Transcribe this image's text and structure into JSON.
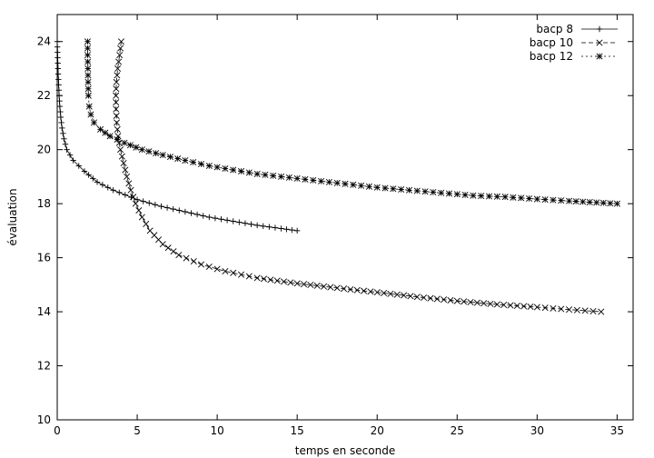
{
  "chart_data": {
    "type": "line",
    "title": "",
    "xlabel": "temps en seconde",
    "ylabel": "évaluation",
    "xlim": [
      0,
      36
    ],
    "ylim": [
      10,
      25
    ],
    "xticks": [
      0,
      5,
      10,
      15,
      20,
      25,
      30,
      35
    ],
    "yticks": [
      10,
      12,
      14,
      16,
      18,
      20,
      22,
      24
    ],
    "grid": false,
    "legend_position": "top-right",
    "series": [
      {
        "name": "bacp 8",
        "marker": "plus",
        "line_style": "solid",
        "points": [
          [
            0.0,
            24.0
          ],
          [
            0.02,
            23.6
          ],
          [
            0.04,
            23.2
          ],
          [
            0.06,
            22.8
          ],
          [
            0.09,
            22.4
          ],
          [
            0.12,
            22.0
          ],
          [
            0.16,
            21.6
          ],
          [
            0.22,
            21.2
          ],
          [
            0.3,
            20.8
          ],
          [
            0.42,
            20.4
          ],
          [
            0.6,
            20.0
          ],
          [
            1.0,
            19.6
          ],
          [
            1.7,
            19.2
          ],
          [
            2.5,
            18.8
          ],
          [
            3.5,
            18.5
          ],
          [
            5.0,
            18.15
          ],
          [
            6.5,
            17.9
          ],
          [
            8.0,
            17.7
          ],
          [
            9.5,
            17.5
          ],
          [
            11.0,
            17.35
          ],
          [
            12.5,
            17.2
          ],
          [
            14.0,
            17.08
          ],
          [
            15.0,
            17.0
          ]
        ]
      },
      {
        "name": "bacp 10",
        "marker": "cross",
        "line_style": "dashed",
        "points": [
          [
            4.0,
            24.0
          ],
          [
            3.9,
            23.5
          ],
          [
            3.78,
            23.0
          ],
          [
            3.7,
            22.5
          ],
          [
            3.67,
            22.0
          ],
          [
            3.68,
            21.5
          ],
          [
            3.72,
            21.0
          ],
          [
            3.8,
            20.5
          ],
          [
            3.95,
            20.0
          ],
          [
            4.15,
            19.5
          ],
          [
            4.35,
            19.0
          ],
          [
            4.6,
            18.5
          ],
          [
            4.9,
            18.0
          ],
          [
            5.3,
            17.5
          ],
          [
            5.8,
            17.0
          ],
          [
            6.6,
            16.5
          ],
          [
            7.6,
            16.1
          ],
          [
            9.0,
            15.75
          ],
          [
            10.5,
            15.5
          ],
          [
            12.5,
            15.25
          ],
          [
            15.0,
            15.05
          ],
          [
            17.5,
            14.88
          ],
          [
            20.0,
            14.72
          ],
          [
            22.5,
            14.55
          ],
          [
            25.0,
            14.4
          ],
          [
            27.5,
            14.27
          ],
          [
            30.0,
            14.17
          ],
          [
            32.0,
            14.08
          ],
          [
            34.0,
            14.0
          ]
        ]
      },
      {
        "name": "bacp 12",
        "marker": "star",
        "line_style": "dotted",
        "points": [
          [
            1.9,
            24.0
          ],
          [
            1.9,
            23.5
          ],
          [
            1.92,
            23.0
          ],
          [
            1.93,
            22.5
          ],
          [
            1.95,
            22.0
          ],
          [
            2.0,
            21.6
          ],
          [
            2.1,
            21.3
          ],
          [
            2.3,
            21.0
          ],
          [
            2.7,
            20.75
          ],
          [
            3.3,
            20.5
          ],
          [
            4.2,
            20.25
          ],
          [
            5.3,
            20.0
          ],
          [
            6.6,
            19.8
          ],
          [
            8.0,
            19.6
          ],
          [
            9.5,
            19.4
          ],
          [
            11.0,
            19.25
          ],
          [
            12.5,
            19.1
          ],
          [
            14.0,
            19.0
          ],
          [
            15.5,
            18.9
          ],
          [
            17.0,
            18.8
          ],
          [
            18.5,
            18.7
          ],
          [
            20.0,
            18.6
          ],
          [
            22.0,
            18.5
          ],
          [
            24.0,
            18.4
          ],
          [
            26.0,
            18.3
          ],
          [
            28.0,
            18.25
          ],
          [
            30.0,
            18.17
          ],
          [
            32.0,
            18.1
          ],
          [
            35.0,
            18.0
          ]
        ]
      }
    ]
  }
}
